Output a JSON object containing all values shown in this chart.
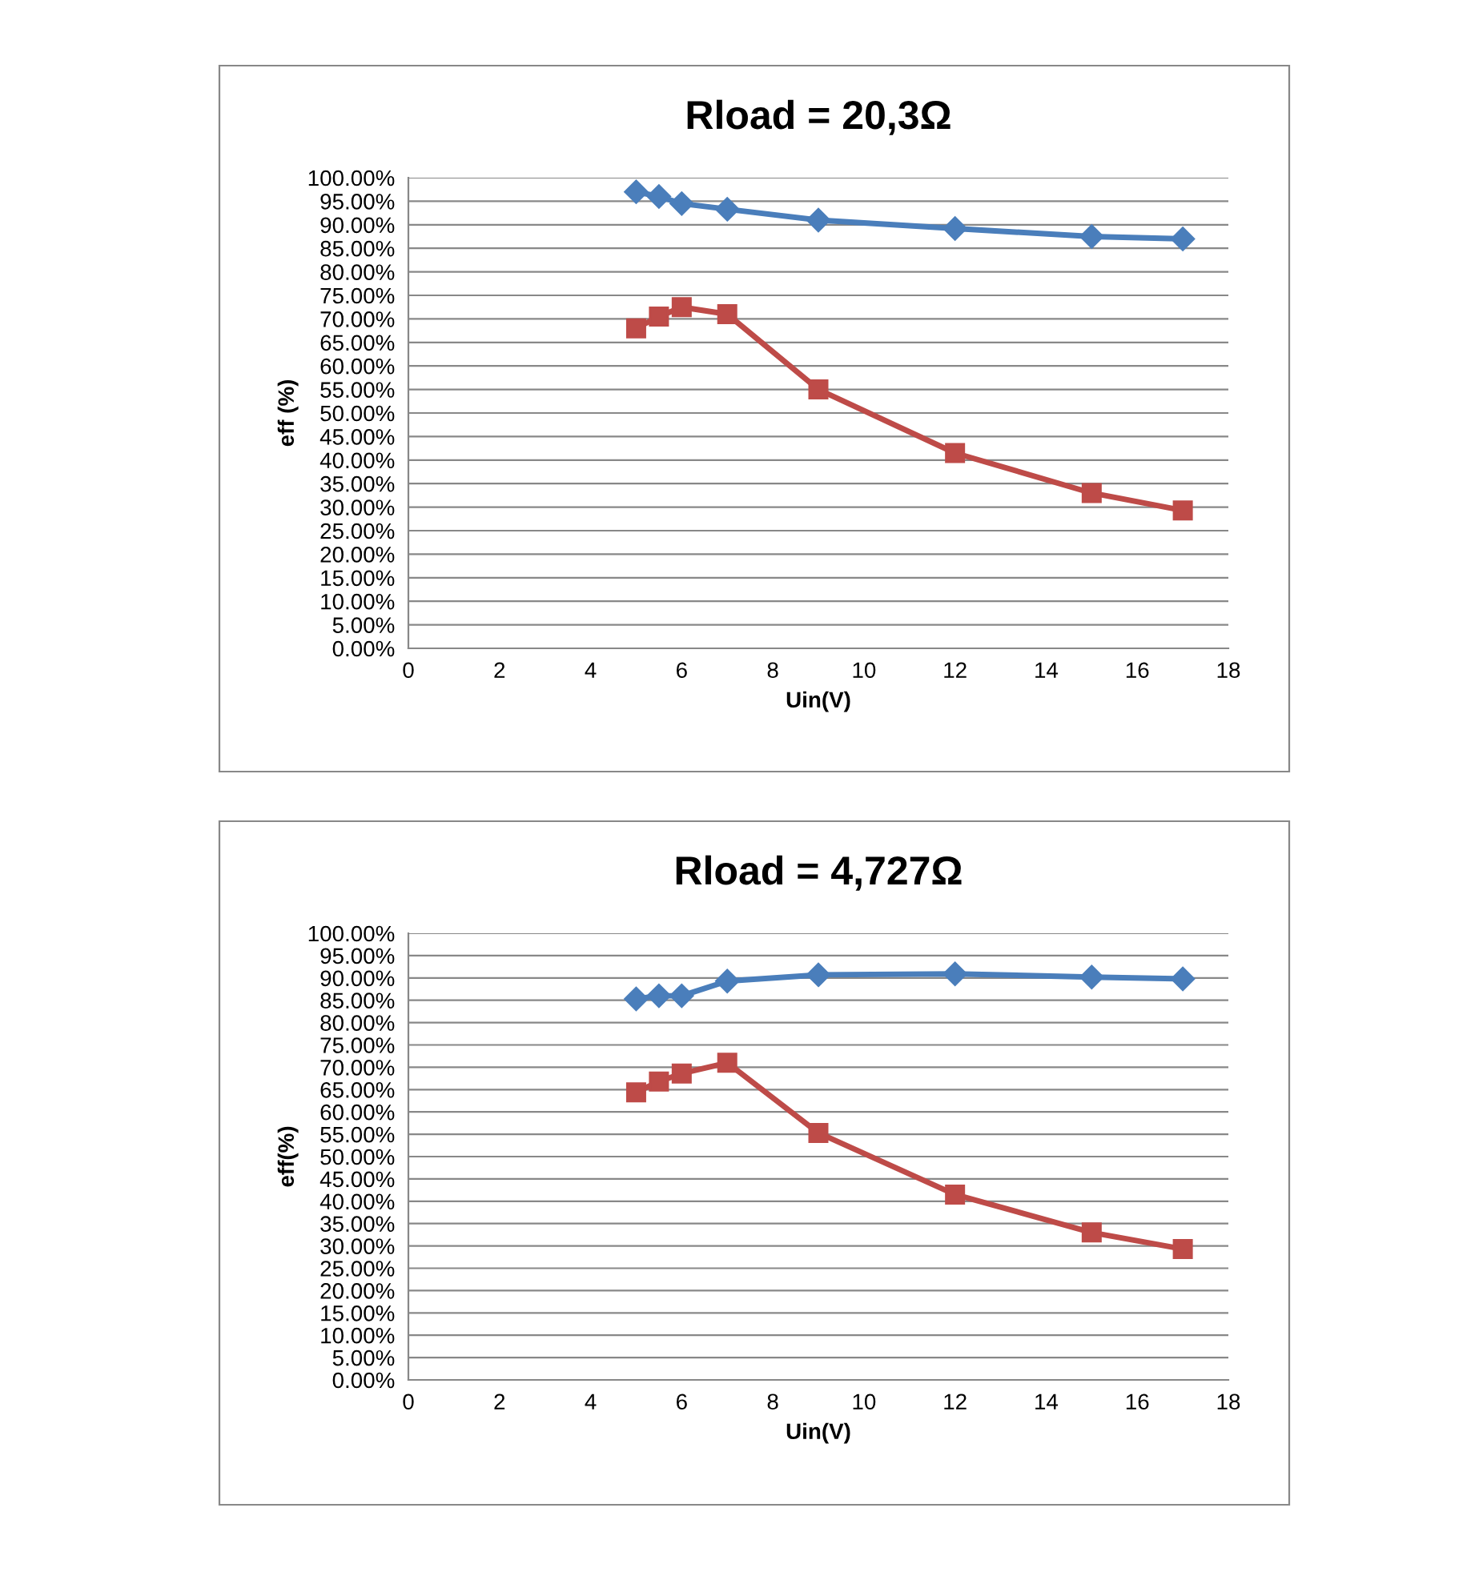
{
  "chart_data": [
    {
      "type": "line",
      "title": "Rload = 20,3Ω",
      "xlabel": "Uin(V)",
      "ylabel": "eff (%)",
      "x": [
        5,
        5.5,
        6,
        7,
        9,
        12,
        15,
        17
      ],
      "series": [
        {
          "color": "#4a7ebb",
          "marker": "diamond",
          "values": [
            97,
            96,
            94.5,
            93.3,
            91,
            89.2,
            87.5,
            87
          ]
        },
        {
          "color": "#be4b48",
          "marker": "square",
          "values": [
            68,
            70.5,
            72.5,
            71,
            55,
            41.5,
            33,
            29.3
          ]
        }
      ],
      "xlim": [
        0,
        18
      ],
      "xticks": [
        0,
        2,
        4,
        6,
        8,
        10,
        12,
        14,
        16,
        18
      ],
      "ylim": [
        0,
        100
      ],
      "yticks": [
        {
          "value": 0,
          "label": "0.00%"
        },
        {
          "value": 5,
          "label": "5.00%"
        },
        {
          "value": 10,
          "label": "10.00%"
        },
        {
          "value": 15,
          "label": "15.00%"
        },
        {
          "value": 20,
          "label": "20.00%"
        },
        {
          "value": 25,
          "label": "25.00%"
        },
        {
          "value": 30,
          "label": "30.00%"
        },
        {
          "value": 35,
          "label": "35.00%"
        },
        {
          "value": 40,
          "label": "40.00%"
        },
        {
          "value": 45,
          "label": "45.00%"
        },
        {
          "value": 50,
          "label": "50.00%"
        },
        {
          "value": 55,
          "label": "55.00%"
        },
        {
          "value": 60,
          "label": "60.00%"
        },
        {
          "value": 65,
          "label": "65.00%"
        },
        {
          "value": 70,
          "label": "70.00%"
        },
        {
          "value": 75,
          "label": "75.00%"
        },
        {
          "value": 80,
          "label": "80.00%"
        },
        {
          "value": 85,
          "label": "85.00%"
        },
        {
          "value": 90,
          "label": "90.00%"
        },
        {
          "value": 95,
          "label": "95.00%"
        },
        {
          "value": 100,
          "label": "100.00%"
        }
      ],
      "grid": "y",
      "line_style": "solid"
    },
    {
      "type": "line",
      "title": "Rload = 4,727Ω",
      "xlabel": "Uin(V)",
      "ylabel": "eff(%)",
      "x": [
        5,
        5.5,
        6,
        7,
        9,
        12,
        15,
        17
      ],
      "series": [
        {
          "color": "#4a7ebb",
          "marker": "diamond",
          "values": [
            85.3,
            86,
            86,
            89.3,
            90.7,
            90.9,
            90.2,
            89.8
          ]
        },
        {
          "color": "#be4b48",
          "marker": "square",
          "values": [
            64.4,
            66.8,
            68.6,
            71,
            55.3,
            41.5,
            33,
            29.3
          ]
        }
      ],
      "xlim": [
        0,
        18
      ],
      "xticks": [
        0,
        2,
        4,
        6,
        8,
        10,
        12,
        14,
        16,
        18
      ],
      "ylim": [
        0,
        100
      ],
      "yticks": [
        {
          "value": 0,
          "label": "0.00%"
        },
        {
          "value": 5,
          "label": "5.00%"
        },
        {
          "value": 10,
          "label": "10.00%"
        },
        {
          "value": 15,
          "label": "15.00%"
        },
        {
          "value": 20,
          "label": "20.00%"
        },
        {
          "value": 25,
          "label": "25.00%"
        },
        {
          "value": 30,
          "label": "30.00%"
        },
        {
          "value": 35,
          "label": "35.00%"
        },
        {
          "value": 40,
          "label": "40.00%"
        },
        {
          "value": 45,
          "label": "45.00%"
        },
        {
          "value": 50,
          "label": "50.00%"
        },
        {
          "value": 55,
          "label": "55.00%"
        },
        {
          "value": 60,
          "label": "60.00%"
        },
        {
          "value": 65,
          "label": "65.00%"
        },
        {
          "value": 70,
          "label": "70.00%"
        },
        {
          "value": 75,
          "label": "75.00%"
        },
        {
          "value": 80,
          "label": "80.00%"
        },
        {
          "value": 85,
          "label": "85.00%"
        },
        {
          "value": 90,
          "label": "90.00%"
        },
        {
          "value": 95,
          "label": "95.00%"
        },
        {
          "value": 100,
          "label": "100.00%"
        }
      ],
      "grid": "y",
      "line_style": "solid"
    }
  ]
}
